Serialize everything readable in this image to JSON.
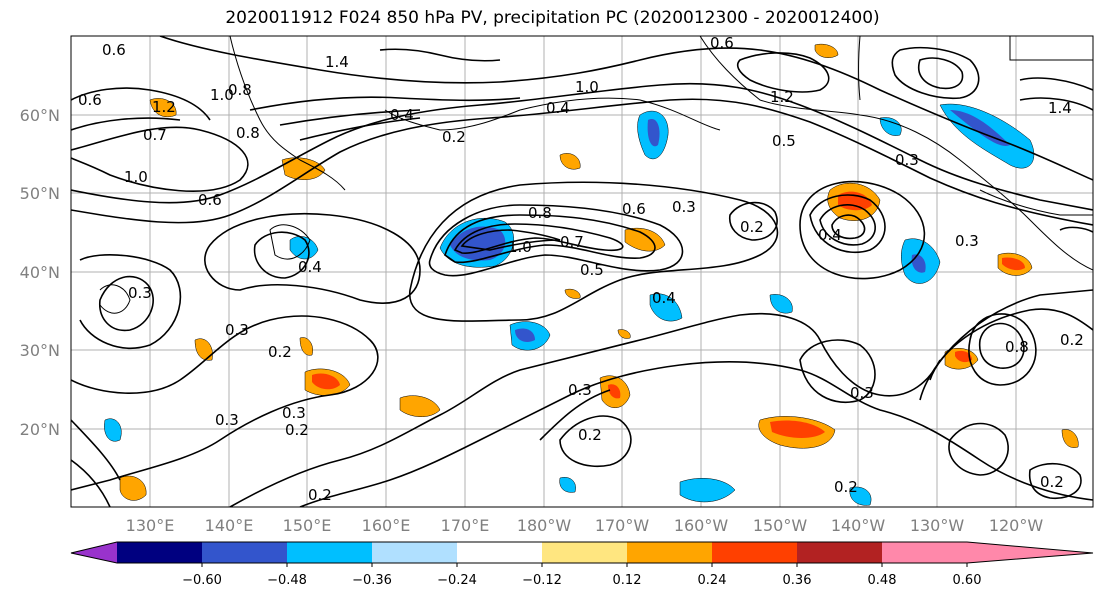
{
  "title": "2020011912 F024 850 hPa PV, precipitation PC (2020012300 - 2020012400)",
  "latitude_labels": [
    "60°N",
    "50°N",
    "40°N",
    "30°N",
    "20°N"
  ],
  "longitude_labels": [
    "130°E",
    "140°E",
    "150°E",
    "160°E",
    "170°E",
    "180°W",
    "170°W",
    "160°W",
    "150°W",
    "140°W",
    "130°W",
    "120°W"
  ],
  "contour_labels": [
    "0.6",
    "1.4",
    "1.2",
    "1.0",
    "0.8",
    "0.7",
    "0.6",
    "1.0",
    "0.4",
    "0.2",
    "1.0",
    "0.4",
    "1.2",
    "0.8",
    "0.5",
    "0.6",
    "0.8",
    "0.6",
    "0.7",
    "1.0",
    "0.5",
    "0.4",
    "0.3",
    "0.2",
    "0.3",
    "0.2",
    "0.3",
    "0.4",
    "0.3",
    "0.2",
    "0.3",
    "0.2",
    "0.3",
    "0.2",
    "0.3",
    "0.2",
    "0.2",
    "0.3",
    "1.4",
    "0.6",
    "0.4",
    "0.8",
    "0.3",
    "0.2"
  ],
  "colorbar": {
    "tick_labels": [
      "−0.60",
      "−0.48",
      "−0.36",
      "−0.24",
      "−0.12",
      "0.12",
      "0.24",
      "0.36",
      "0.48",
      "0.60"
    ],
    "colors": [
      "#9933cc",
      "#000080",
      "#3355cc",
      "#00bfff",
      "#b0e0ff",
      "#ffffff",
      "#ffe680",
      "#ffa500",
      "#ff4000",
      "#b22222",
      "#ff88aa"
    ]
  }
}
